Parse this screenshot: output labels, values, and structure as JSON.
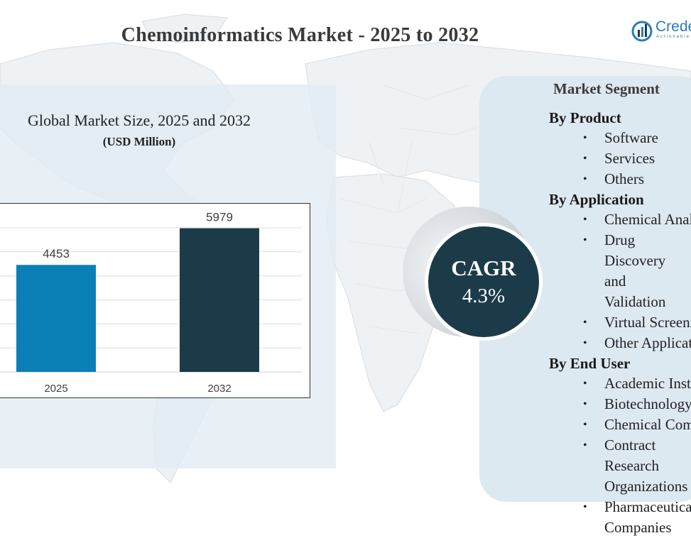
{
  "title": "Chemoinformatics Market - 2025 to 2032",
  "logo": {
    "text": "Crede",
    "subtext": "Actionable"
  },
  "chart_header": {
    "title": "Global Market Size, 2025 and 2032",
    "subtitle": "(USD Million)"
  },
  "chart_data": {
    "type": "bar",
    "categories": [
      "2025",
      "2032"
    ],
    "values": [
      4453,
      5979
    ],
    "data_labels": [
      "4453",
      "5979"
    ],
    "title": "Global Market Size, 2025 and 2032",
    "subtitle": "(USD Million)",
    "ylim": [
      0,
      7000
    ],
    "grid": true,
    "colors": [
      "#0a80b6",
      "#1b3b48"
    ]
  },
  "cagr": {
    "label": "CAGR",
    "value": "4.3%"
  },
  "segments": {
    "title": "Market Segment",
    "groups": [
      {
        "heading": "By Product",
        "items": [
          "Software",
          "Services",
          "Others"
        ]
      },
      {
        "heading": "By Application",
        "items": [
          "Chemical Analysis",
          "Drug Discovery and Validation",
          "Virtual Screening",
          "Other Applications"
        ]
      },
      {
        "heading": "By End User",
        "items": [
          "Academic Institutes",
          "Biotechnology Companies",
          "Chemical Companies",
          "Contract Research Organizations",
          "Pharmaceutical Companies"
        ]
      }
    ]
  },
  "colors": {
    "panel_bg": "#e2ecf4",
    "segment_bg": "#dde9f1",
    "cagr_bg": "#1b3b48",
    "title": "#3a3a3a"
  }
}
